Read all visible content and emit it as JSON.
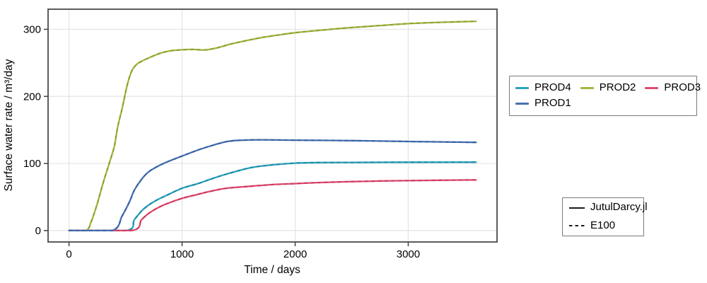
{
  "chart_data": {
    "type": "line",
    "title": "",
    "xlabel": "Time / days",
    "ylabel": "Surface water rate / m³/day",
    "xlim": [
      -185,
      3785
    ],
    "ylim": [
      -17,
      330
    ],
    "xticks": [
      0,
      1000,
      2000,
      3000
    ],
    "yticks": [
      0,
      100,
      200,
      300
    ],
    "grid": true,
    "grid_color": "#e4e4e4",
    "spine_color": "#4a4a4a",
    "legend_position": "right-outside",
    "series": [
      {
        "name": "PROD4",
        "color": "#29a3bd",
        "dash_color": "#1b8aa4",
        "x": [
          0,
          505,
          577,
          640,
          700,
          765,
          850,
          1000,
          1140,
          1250,
          1390,
          1600,
          1800,
          2000,
          2200,
          2500,
          2800,
          3100,
          3600
        ],
        "y": [
          0,
          0,
          16,
          29,
          37.5,
          44.5,
          51.5,
          63,
          70,
          76.5,
          84,
          93.5,
          98,
          100.5,
          101.3,
          101.6,
          101.8,
          101.9,
          102
        ]
      },
      {
        "name": "PROD2",
        "color": "#a0b73f",
        "dash_color": "#8aa22e",
        "x": [
          0,
          150,
          200,
          250,
          300,
          350,
          400,
          430,
          470,
          515,
          555,
          600,
          650,
          700,
          800,
          900,
          1000,
          1100,
          1200,
          1300,
          1430,
          1550,
          1650,
          1750,
          1850,
          2000,
          2250,
          2450,
          2700,
          3000,
          3300,
          3600
        ],
        "y": [
          0,
          0,
          15,
          40,
          70,
          97,
          125,
          154,
          182,
          217,
          238,
          248,
          253,
          257,
          264,
          268,
          269.5,
          270,
          269.2,
          272,
          278,
          282.5,
          286,
          289,
          291.5,
          295,
          299,
          302,
          305,
          308.5,
          310.5,
          312
        ]
      },
      {
        "name": "PROD3",
        "color": "#e04a70",
        "dash_color": "#cb395f",
        "x": [
          0,
          550,
          640,
          700,
          765,
          850,
          1000,
          1140,
          1250,
          1390,
          1600,
          1800,
          2000,
          2200,
          2500,
          2800,
          3100,
          3600
        ],
        "y": [
          0,
          0,
          16,
          25,
          32,
          39,
          48,
          54,
          58.5,
          63,
          66,
          68.5,
          70,
          71.5,
          73,
          74,
          74.7,
          75.5
        ]
      },
      {
        "name": "PROD1",
        "color": "#4671b4",
        "dash_color": "#395f9f",
        "x": [
          0,
          380,
          470,
          535,
          577,
          640,
          700,
          765,
          850,
          1000,
          1140,
          1250,
          1390,
          1500,
          1700,
          2000,
          2500,
          3000,
          3600
        ],
        "y": [
          0,
          0,
          22,
          43,
          60,
          76,
          87,
          94,
          101,
          111,
          120,
          126,
          132.5,
          134.5,
          135.3,
          134.8,
          134,
          132.8,
          131.5
        ]
      }
    ],
    "style_legend": [
      {
        "label": "JutulDarcy.jl",
        "style": "solid"
      },
      {
        "label": "E100",
        "style": "dashed"
      }
    ]
  }
}
